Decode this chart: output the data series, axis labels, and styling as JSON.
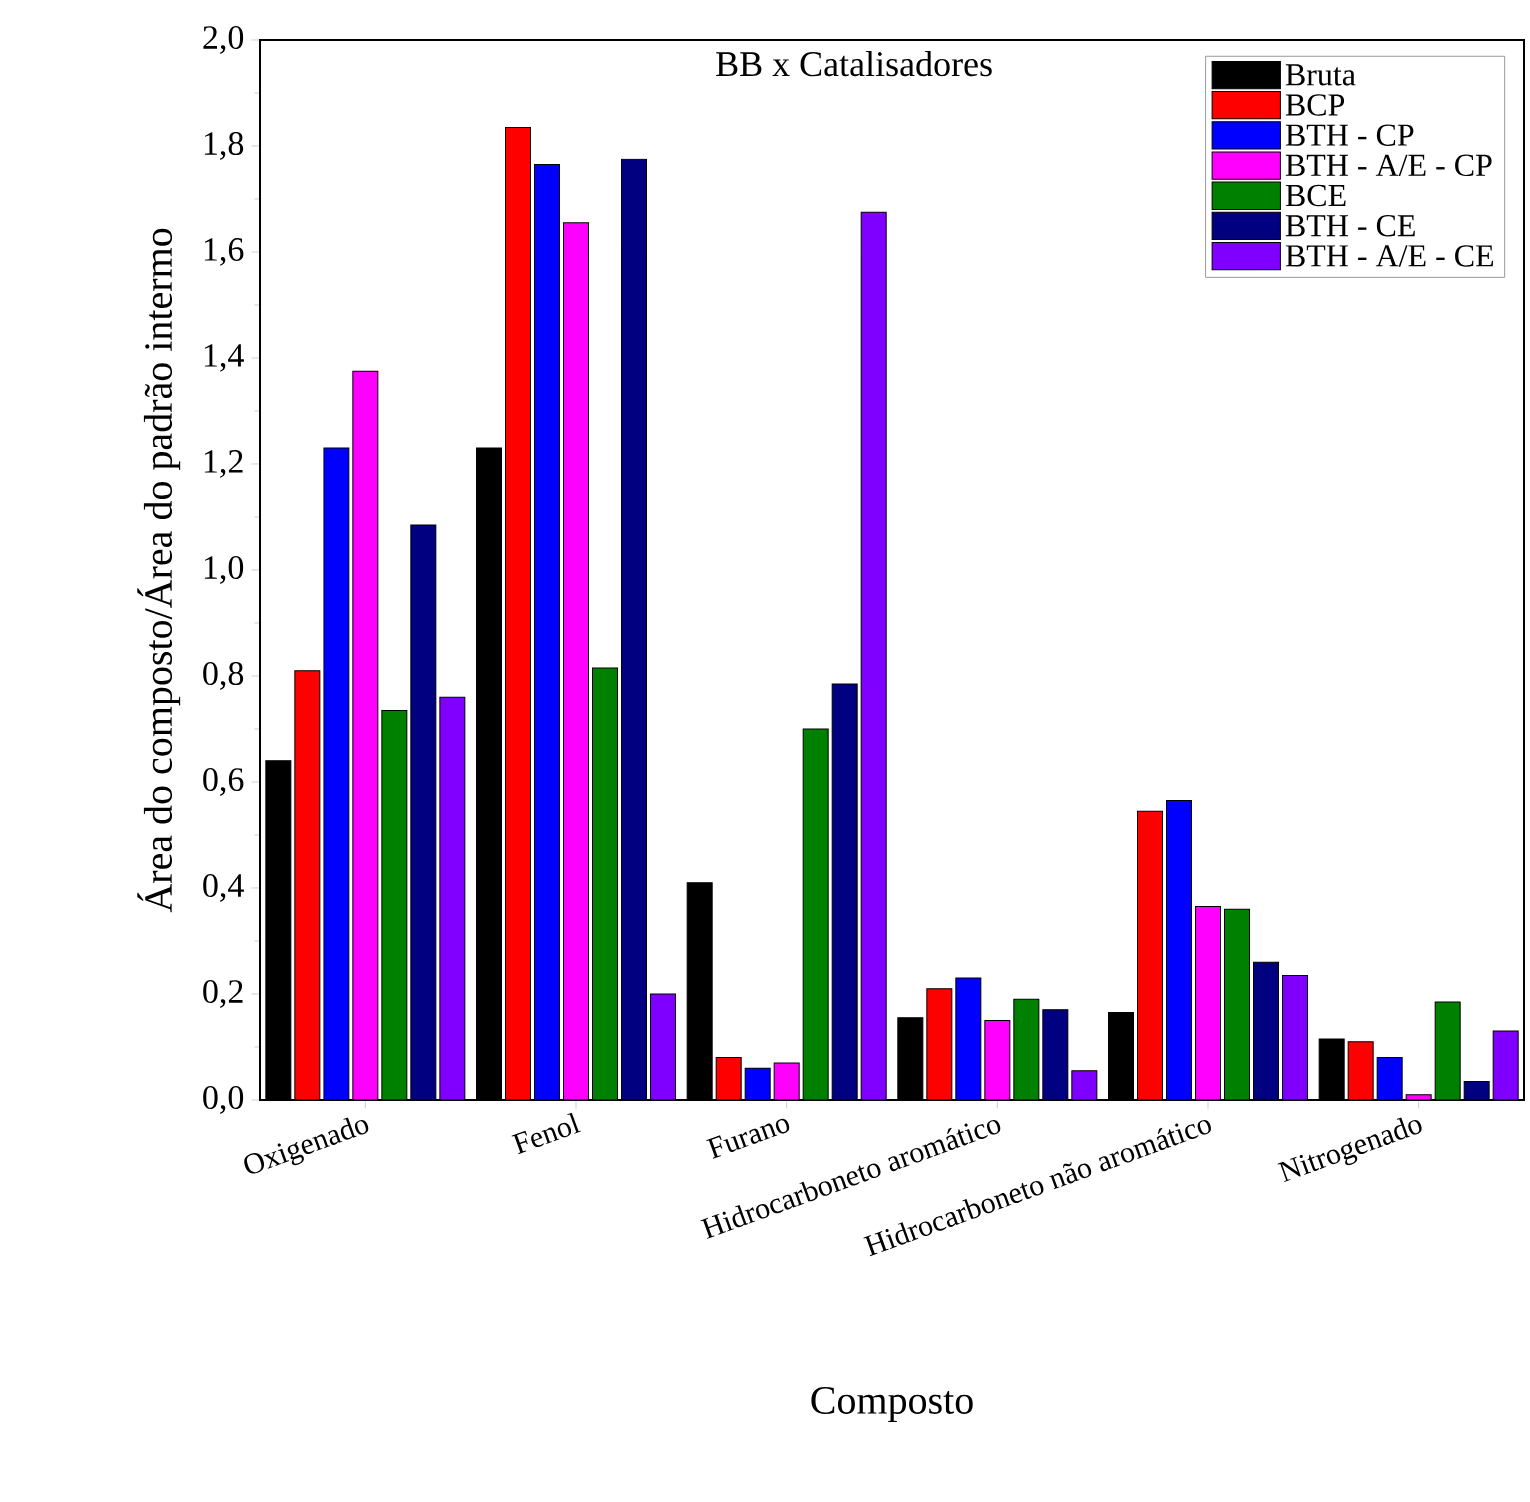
{
  "chart_data": {
    "type": "bar",
    "title": "BB x Catalisadores",
    "xlabel": "Composto",
    "ylabel": "Área do composto/Área do padrão intermo",
    "categories": [
      "Oxigenado",
      "Fenol",
      "Furano",
      "Hidrocarboneto aromático",
      "Hidrocarboneto não aromático",
      "Nitrogenado"
    ],
    "series": [
      {
        "name": "Bruta",
        "color": "#000000",
        "values": [
          0.64,
          1.23,
          0.41,
          0.155,
          0.165,
          0.115
        ]
      },
      {
        "name": "BCP",
        "color": "#ff0000",
        "values": [
          0.81,
          1.835,
          0.08,
          0.21,
          0.545,
          0.11
        ]
      },
      {
        "name": "BTH - CP",
        "color": "#0000ff",
        "values": [
          1.23,
          1.765,
          0.06,
          0.23,
          0.565,
          0.08
        ]
      },
      {
        "name": "BTH - A/E - CP",
        "color": "#ff00ff",
        "values": [
          1.375,
          1.655,
          0.07,
          0.15,
          0.365,
          0.01
        ]
      },
      {
        "name": "BCE",
        "color": "#008000",
        "values": [
          0.735,
          0.815,
          0.7,
          0.19,
          0.36,
          0.185
        ]
      },
      {
        "name": "BTH - CE",
        "color": "#000080",
        "values": [
          1.085,
          1.775,
          0.785,
          0.17,
          0.26,
          0.035
        ]
      },
      {
        "name": "BTH - A/E - CE",
        "color": "#8000ff",
        "values": [
          0.76,
          0.2,
          1.675,
          0.055,
          0.235,
          0.13
        ]
      }
    ],
    "ylim": [
      0,
      2.0
    ],
    "yticks": [
      {
        "value": 0,
        "label": "0,0"
      },
      {
        "value": 0.2,
        "label": "0,2"
      },
      {
        "value": 0.4,
        "label": "0,4"
      },
      {
        "value": 0.6,
        "label": "0,6"
      },
      {
        "value": 0.8,
        "label": "0,8"
      },
      {
        "value": 1.0,
        "label": "1,0"
      },
      {
        "value": 1.2,
        "label": "1,2"
      },
      {
        "value": 1.4,
        "label": "1,4"
      },
      {
        "value": 1.6,
        "label": "1,6"
      },
      {
        "value": 1.8,
        "label": "1,8"
      },
      {
        "value": 2.0,
        "label": "2,0"
      }
    ],
    "legend": "top right",
    "grid": false
  }
}
